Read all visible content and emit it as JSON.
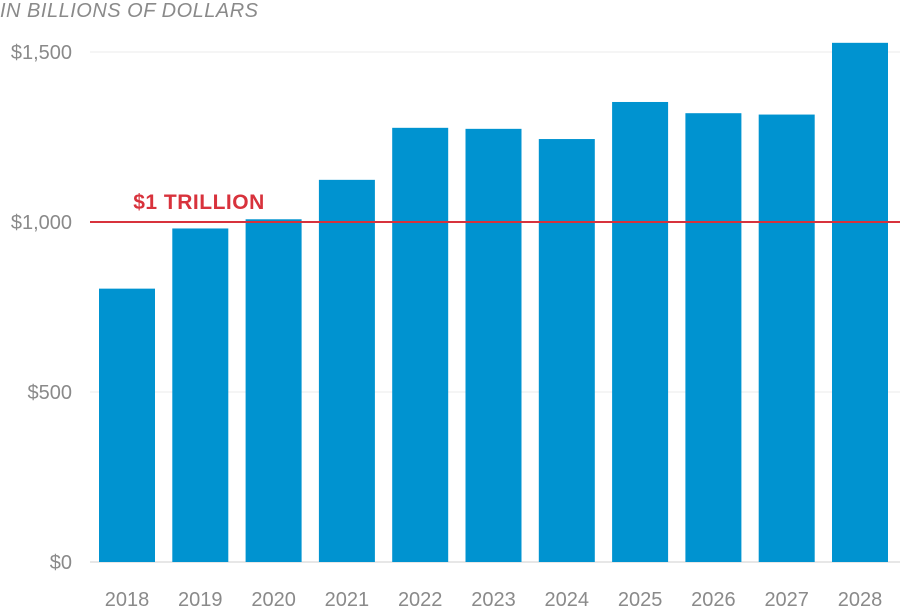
{
  "chart_data": {
    "type": "bar",
    "subtitle": "IN BILLIONS OF DOLLARS",
    "categories": [
      "2018",
      "2019",
      "2020",
      "2021",
      "2022",
      "2023",
      "2024",
      "2025",
      "2026",
      "2027",
      "2028"
    ],
    "values": [
      804,
      981,
      1008,
      1124,
      1277,
      1274,
      1244,
      1353,
      1320,
      1316,
      1527
    ],
    "ylim": [
      0,
      1600
    ],
    "yticks": [
      0,
      500,
      1000,
      1500
    ],
    "ytick_labels": [
      "$0",
      "$500",
      "$1,000",
      "$1,500"
    ],
    "reference_line": {
      "value": 1000,
      "label": "$1 TRILLION",
      "color": "#d8323c"
    },
    "bar_color": "#0093d0",
    "grid": true,
    "legend": "none"
  }
}
